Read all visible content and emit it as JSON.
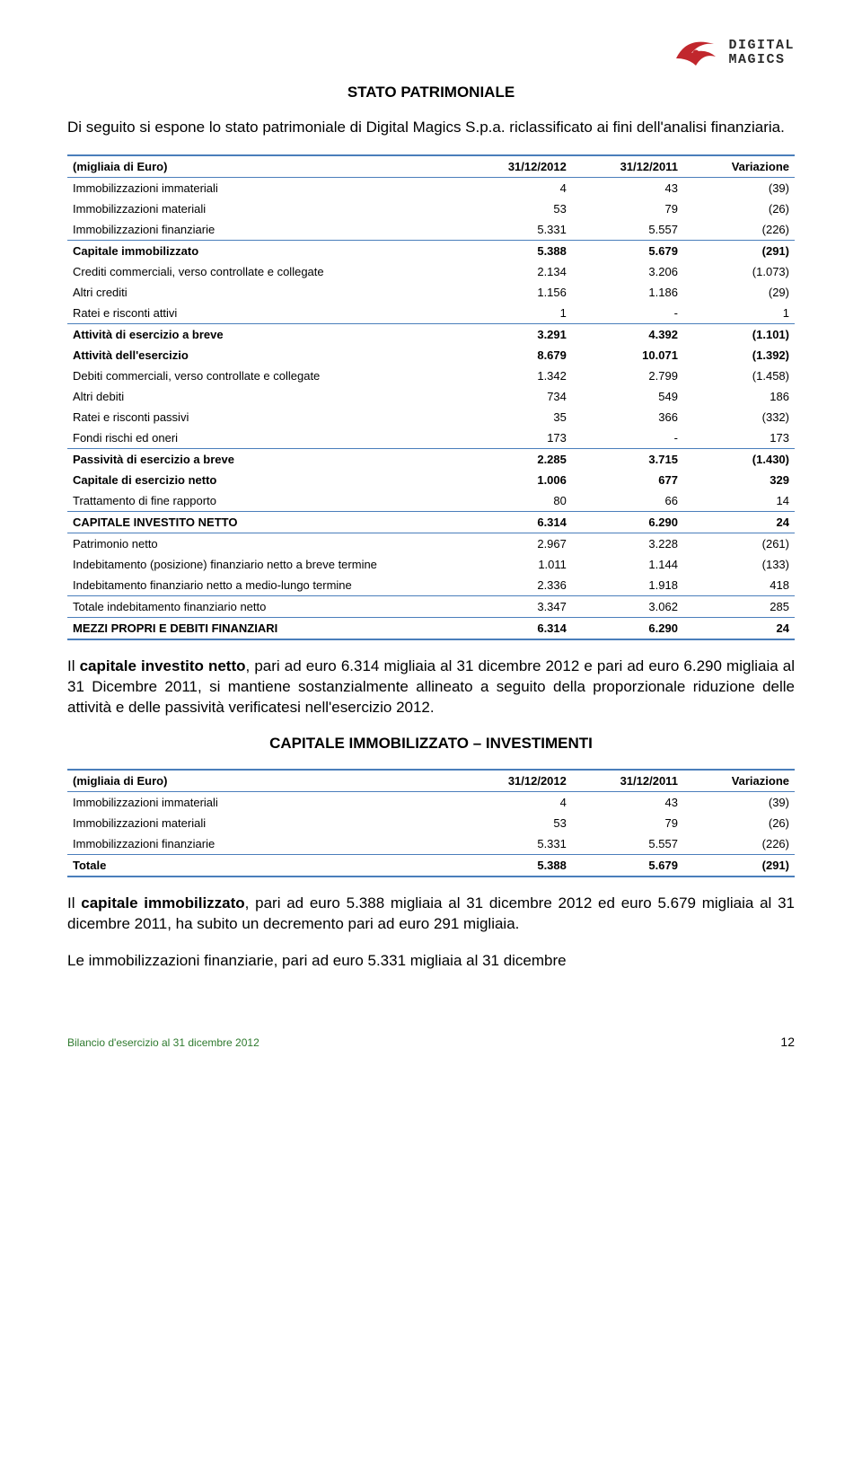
{
  "logo": {
    "line1": "DIGITAL",
    "line2": "MAGICS",
    "swoosh_color": "#c1272d",
    "text_color": "#2a2a2a"
  },
  "section1": {
    "title": "STATO PATRIMONIALE",
    "intro": "Di seguito si espone lo stato patrimoniale di Digital Magics S.p.a. riclassificato ai fini dell'analisi finanziaria."
  },
  "table1": {
    "header": [
      "(migliaia di Euro)",
      "31/12/2012",
      "31/12/2011",
      "Variazione"
    ],
    "rows": [
      {
        "label": "Immobilizzazioni immateriali",
        "c1": "4",
        "c2": "43",
        "c3": "(39)",
        "bold": false,
        "sep": false
      },
      {
        "label": "Immobilizzazioni materiali",
        "c1": "53",
        "c2": "79",
        "c3": "(26)",
        "bold": false,
        "sep": false
      },
      {
        "label": "Immobilizzazioni finanziarie",
        "c1": "5.331",
        "c2": "5.557",
        "c3": "(226)",
        "bold": false,
        "sep": true
      },
      {
        "label": "Capitale immobilizzato",
        "c1": "5.388",
        "c2": "5.679",
        "c3": "(291)",
        "bold": true,
        "sep": false
      },
      {
        "label": "Crediti commerciali, verso controllate e collegate",
        "c1": "2.134",
        "c2": "3.206",
        "c3": "(1.073)",
        "bold": false,
        "sep": false
      },
      {
        "label": "Altri crediti",
        "c1": "1.156",
        "c2": "1.186",
        "c3": "(29)",
        "bold": false,
        "sep": false
      },
      {
        "label": "Ratei e risconti attivi",
        "c1": "1",
        "c2": "-",
        "c3": "1",
        "bold": false,
        "sep": true
      },
      {
        "label": "Attività di esercizio a breve",
        "c1": "3.291",
        "c2": "4.392",
        "c3": "(1.101)",
        "bold": true,
        "sep": false
      },
      {
        "label": "Attività dell'esercizio",
        "c1": "8.679",
        "c2": "10.071",
        "c3": "(1.392)",
        "bold": true,
        "sep": false
      },
      {
        "label": "Debiti commerciali, verso controllate e collegate",
        "c1": "1.342",
        "c2": "2.799",
        "c3": "(1.458)",
        "bold": false,
        "sep": false
      },
      {
        "label": "Altri debiti",
        "c1": "734",
        "c2": "549",
        "c3": "186",
        "bold": false,
        "sep": false
      },
      {
        "label": "Ratei e risconti passivi",
        "c1": "35",
        "c2": "366",
        "c3": "(332)",
        "bold": false,
        "sep": false
      },
      {
        "label": "Fondi rischi ed oneri",
        "c1": "173",
        "c2": "-",
        "c3": "173",
        "bold": false,
        "sep": true
      },
      {
        "label": "Passività di esercizio a breve",
        "c1": "2.285",
        "c2": "3.715",
        "c3": "(1.430)",
        "bold": true,
        "sep": false
      },
      {
        "label": "Capitale di esercizio netto",
        "c1": "1.006",
        "c2": "677",
        "c3": "329",
        "bold": true,
        "sep": false
      },
      {
        "label": "Trattamento di fine rapporto",
        "c1": "80",
        "c2": "66",
        "c3": "14",
        "bold": false,
        "sep": true
      },
      {
        "label": "CAPITALE INVESTITO NETTO",
        "c1": "6.314",
        "c2": "6.290",
        "c3": "24",
        "bold": true,
        "sep": true
      },
      {
        "label": "Patrimonio netto",
        "c1": "2.967",
        "c2": "3.228",
        "c3": "(261)",
        "bold": false,
        "sep": false
      },
      {
        "label": "Indebitamento (posizione) finanziario netto a breve termine",
        "c1": "1.011",
        "c2": "1.144",
        "c3": "(133)",
        "bold": false,
        "sep": false
      },
      {
        "label": "Indebitamento finanziario netto a medio-lungo termine",
        "c1": "2.336",
        "c2": "1.918",
        "c3": "418",
        "bold": false,
        "sep": true
      },
      {
        "label": "Totale indebitamento finanziario netto",
        "c1": "3.347",
        "c2": "3.062",
        "c3": "285",
        "bold": false,
        "sep": true
      },
      {
        "label": "MEZZI PROPRI E DEBITI FINANZIARI",
        "c1": "6.314",
        "c2": "6.290",
        "c3": "24",
        "bold": true,
        "sep": false
      }
    ]
  },
  "para1": "Il <b>capitale investito netto</b>, pari ad euro 6.314 migliaia al 31 dicembre  2012 e pari ad euro 6.290 migliaia  al 31 Dicembre 2011, si mantiene sostanzialmente allineato a seguito della proporzionale riduzione delle attività e delle passività verificatesi nell'esercizio 2012.",
  "section2": {
    "title": "CAPITALE IMMOBILIZZATO – INVESTIMENTI"
  },
  "table2": {
    "header": [
      "(migliaia di Euro)",
      "31/12/2012",
      "31/12/2011",
      "Variazione"
    ],
    "rows": [
      {
        "label": "Immobilizzazioni immateriali",
        "c1": "4",
        "c2": "43",
        "c3": "(39)",
        "bold": false,
        "sep": false
      },
      {
        "label": "Immobilizzazioni materiali",
        "c1": "53",
        "c2": "79",
        "c3": "(26)",
        "bold": false,
        "sep": false
      },
      {
        "label": "Immobilizzazioni finanziarie",
        "c1": "5.331",
        "c2": "5.557",
        "c3": "(226)",
        "bold": false,
        "sep": true
      },
      {
        "label": "Totale",
        "c1": "5.388",
        "c2": "5.679",
        "c3": "(291)",
        "bold": true,
        "sep": false
      }
    ]
  },
  "para2": "Il <b>capitale immobilizzato</b>, pari ad euro 5.388 migliaia al 31 dicembre 2012 ed euro 5.679 migliaia al 31 dicembre 2011, ha subito un decremento pari ad euro 291 migliaia.",
  "para3": "Le immobilizzazioni finanziarie, pari ad euro 5.331 migliaia al 31 dicembre",
  "footer": {
    "left": "Bilancio d'esercizio al 31 dicembre 2012",
    "page": "12"
  },
  "colors": {
    "rule": "#4a7ebb",
    "footer_text": "#2e7a2e"
  }
}
